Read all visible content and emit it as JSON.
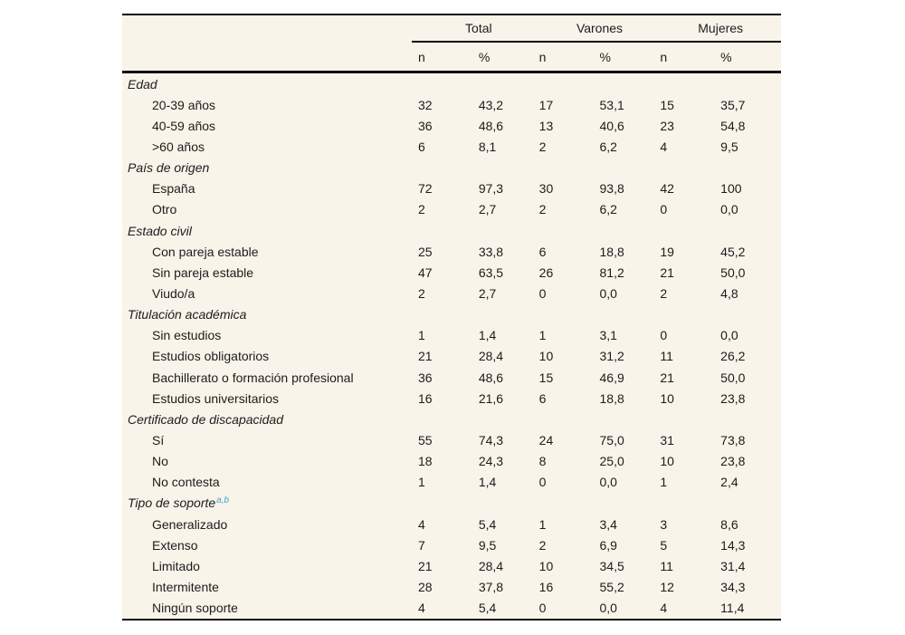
{
  "colors": {
    "table_background": "#f8f4e9",
    "rule_color": "#0a0a0a",
    "text_color": "#1c1c1c",
    "footnote_superscript_color": "#44a0d6"
  },
  "table": {
    "column_groups": [
      {
        "label": "Total"
      },
      {
        "label": "Varones"
      },
      {
        "label": "Mujeres"
      }
    ],
    "sub_headers": [
      "n",
      "%",
      "n",
      "%",
      "n",
      "%"
    ],
    "sections": [
      {
        "title": "Edad",
        "superscript": "",
        "rows": [
          {
            "label": "20-39 años",
            "values": [
              "32",
              "43,2",
              "17",
              "53,1",
              "15",
              "35,7"
            ]
          },
          {
            "label": "40-59 años",
            "values": [
              "36",
              "48,6",
              "13",
              "40,6",
              "23",
              "54,8"
            ]
          },
          {
            "label": ">60 años",
            "values": [
              "6",
              "8,1",
              "2",
              "6,2",
              "4",
              "9,5"
            ]
          }
        ]
      },
      {
        "title": "País de origen",
        "superscript": "",
        "rows": [
          {
            "label": "España",
            "values": [
              "72",
              "97,3",
              "30",
              "93,8",
              "42",
              "100"
            ]
          },
          {
            "label": "Otro",
            "values": [
              "2",
              "2,7",
              "2",
              "6,2",
              "0",
              "0,0"
            ]
          }
        ]
      },
      {
        "title": "Estado civil",
        "superscript": "",
        "rows": [
          {
            "label": "Con pareja estable",
            "values": [
              "25",
              "33,8",
              "6",
              "18,8",
              "19",
              "45,2"
            ]
          },
          {
            "label": "Sin pareja estable",
            "values": [
              "47",
              "63,5",
              "26",
              "81,2",
              "21",
              "50,0"
            ]
          },
          {
            "label": "Viudo/a",
            "values": [
              "2",
              "2,7",
              "0",
              "0,0",
              "2",
              "4,8"
            ]
          }
        ]
      },
      {
        "title": "Titulación académica",
        "superscript": "",
        "rows": [
          {
            "label": "Sin estudios",
            "values": [
              "1",
              "1,4",
              "1",
              "3,1",
              "0",
              "0,0"
            ]
          },
          {
            "label": "Estudios obligatorios",
            "values": [
              "21",
              "28,4",
              "10",
              "31,2",
              "11",
              "26,2"
            ]
          },
          {
            "label": "Bachillerato o formación profesional",
            "values": [
              "36",
              "48,6",
              "15",
              "46,9",
              "21",
              "50,0"
            ]
          },
          {
            "label": "Estudios universitarios",
            "values": [
              "16",
              "21,6",
              "6",
              "18,8",
              "10",
              "23,8"
            ]
          }
        ]
      },
      {
        "title": "Certificado de discapacidad",
        "superscript": "",
        "rows": [
          {
            "label": "Sí",
            "values": [
              "55",
              "74,3",
              "24",
              "75,0",
              "31",
              "73,8"
            ]
          },
          {
            "label": "No",
            "values": [
              "18",
              "24,3",
              "8",
              "25,0",
              "10",
              "23,8"
            ]
          },
          {
            "label": "No contesta",
            "values": [
              "1",
              "1,4",
              "0",
              "0,0",
              "1",
              "2,4"
            ]
          }
        ]
      },
      {
        "title": "Tipo de soporte",
        "superscript": "a,b",
        "rows": [
          {
            "label": "Generalizado",
            "values": [
              "4",
              "5,4",
              "1",
              "3,4",
              "3",
              "8,6"
            ]
          },
          {
            "label": "Extenso",
            "values": [
              "7",
              "9,5",
              "2",
              "6,9",
              "5",
              "14,3"
            ]
          },
          {
            "label": "Limitado",
            "values": [
              "21",
              "28,4",
              "10",
              "34,5",
              "11",
              "31,4"
            ]
          },
          {
            "label": "Intermitente",
            "values": [
              "28",
              "37,8",
              "16",
              "55,2",
              "12",
              "34,3"
            ]
          },
          {
            "label": "Ningún soporte",
            "values": [
              "4",
              "5,4",
              "0",
              "0,0",
              "4",
              "11,4"
            ]
          }
        ]
      }
    ]
  }
}
